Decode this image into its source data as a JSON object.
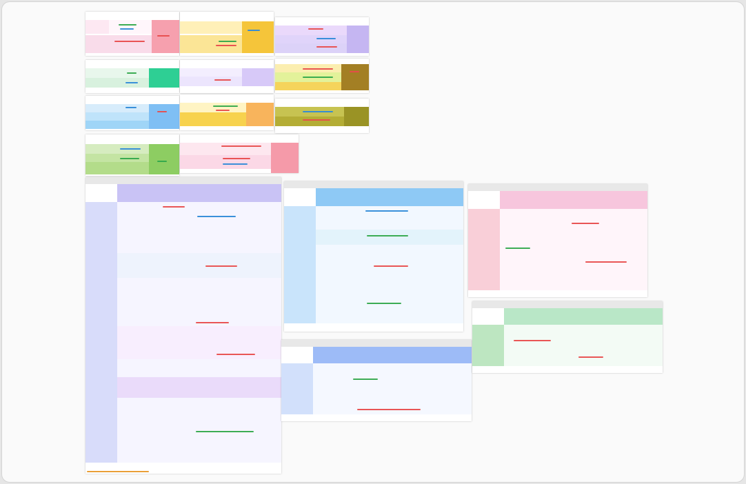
{
  "canvas": {
    "background": "#fafafa",
    "frame_border": "#d4d4d4"
  },
  "mindmap_panels": [
    {
      "id": "p1",
      "title": "",
      "bg": "#ffffff"
    },
    {
      "id": "p2",
      "title": "",
      "bg": "#ffffff"
    },
    {
      "id": "p3",
      "title": "",
      "bg": "#ffffff"
    },
    {
      "id": "p4",
      "title": "",
      "bg": "#ffffff"
    },
    {
      "id": "p5",
      "title": "",
      "bg": "#ffffff"
    },
    {
      "id": "p6",
      "title": "",
      "bg": "#ffffff"
    },
    {
      "id": "p7",
      "title": "",
      "bg": "#ffffff"
    },
    {
      "id": "p8",
      "title": "",
      "bg": "#ffffff"
    },
    {
      "id": "p9",
      "title": "",
      "bg": "#ffffff"
    },
    {
      "id": "p10",
      "title": "",
      "bg": "#ffffff"
    },
    {
      "id": "p11",
      "title": "",
      "bg": "#ffffff"
    },
    {
      "id": "p12",
      "title": "",
      "bg": "#ffffff"
    },
    {
      "id": "p13",
      "title": "",
      "bg": "#ffffff"
    }
  ],
  "tables": [
    {
      "id": "t1",
      "title": "",
      "theme": "#c9c3f5"
    },
    {
      "id": "t2",
      "title": "",
      "theme": "#8ec9f5"
    },
    {
      "id": "t3",
      "title": "",
      "theme": "#f7c6dd"
    },
    {
      "id": "t4",
      "title": "",
      "theme": "#9dbbf7"
    },
    {
      "id": "t5",
      "title": "",
      "theme": "#b9e7c7"
    }
  ],
  "accent_colors": {
    "pink": "#f4b9d3",
    "yellow": "#f7e48d",
    "green": "#8fdca4",
    "purple": "#c9bff5",
    "blue": "#9fd0f5",
    "olive": "#b7b13a",
    "red_text": "#e84c4c",
    "blue_text": "#2f8ad8",
    "green_text": "#31a84b",
    "orange_text": "#e89a2c"
  }
}
